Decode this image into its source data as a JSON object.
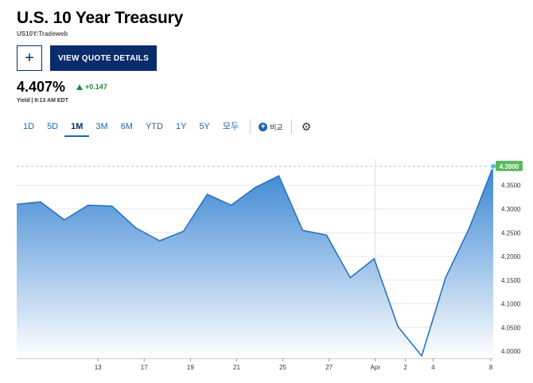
{
  "header": {
    "title": "U.S. 10 Year Treasury",
    "symbol": "US10Y:Tradeweb",
    "add_button": "+",
    "quote_button": "VIEW QUOTE DETAILS",
    "price": "4.407%",
    "change": "+0.147",
    "yield_line": "Yield | 9:13 AM EDT"
  },
  "tabs": [
    {
      "label": "1D",
      "active": false
    },
    {
      "label": "5D",
      "active": false
    },
    {
      "label": "1M",
      "active": true
    },
    {
      "label": "3M",
      "active": false
    },
    {
      "label": "6M",
      "active": false
    },
    {
      "label": "YTD",
      "active": false
    },
    {
      "label": "1Y",
      "active": false
    },
    {
      "label": "5Y",
      "active": false
    },
    {
      "label": "모두",
      "active": false
    }
  ],
  "compare_label": "비교",
  "icons": {
    "compare": "plus-circle-icon",
    "settings": "gear-icon"
  },
  "colors": {
    "accent": "#1e64b4",
    "brand": "#0a2c6c",
    "up": "#1e8a3c",
    "area_top": "#2f7fd0",
    "area_bottom": "#ffffff"
  },
  "chart_data": {
    "type": "area",
    "x_tick_labels": [
      "13",
      "17",
      "19",
      "21",
      "25",
      "27",
      "Apr",
      "2",
      "4",
      "8"
    ],
    "y_tick_labels": [
      "4.0000",
      "4.0500",
      "4.1000",
      "4.1500",
      "4.2000",
      "4.2500",
      "4.3000",
      "4.3500"
    ],
    "ylim": [
      3.985,
      4.405
    ],
    "current_label": "4.3900",
    "points": [
      {
        "x": "Mar 10",
        "y": 4.31
      },
      {
        "x": "Mar 11",
        "y": 4.315
      },
      {
        "x": "Mar 12",
        "y": 4.277
      },
      {
        "x": "Mar 13",
        "y": 4.308
      },
      {
        "x": "Mar 14",
        "y": 4.306
      },
      {
        "x": "Mar 17",
        "y": 4.26
      },
      {
        "x": "Mar 18",
        "y": 4.233
      },
      {
        "x": "Mar 19",
        "y": 4.253
      },
      {
        "x": "Mar 20",
        "y": 4.331
      },
      {
        "x": "Mar 21",
        "y": 4.308
      },
      {
        "x": "Mar 24",
        "y": 4.345
      },
      {
        "x": "Mar 25",
        "y": 4.37
      },
      {
        "x": "Mar 26",
        "y": 4.255
      },
      {
        "x": "Mar 27",
        "y": 4.245
      },
      {
        "x": "Mar 28",
        "y": 4.155
      },
      {
        "x": "Mar 31",
        "y": 4.195
      },
      {
        "x": "Apr 1",
        "y": 4.052
      },
      {
        "x": "Apr 2",
        "y": 3.99
      },
      {
        "x": "Apr 3",
        "y": 4.155
      },
      {
        "x": "Apr 4",
        "y": 4.26
      },
      {
        "x": "Apr 7",
        "y": 4.39
      }
    ]
  }
}
